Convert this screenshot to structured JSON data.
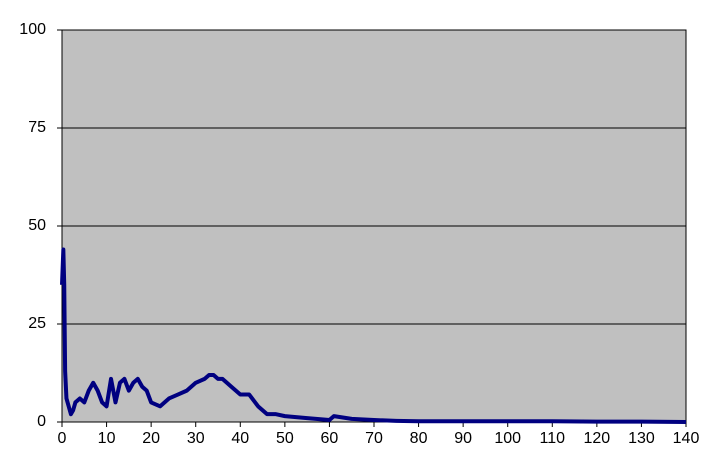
{
  "chart_data": {
    "type": "line",
    "x": [
      0,
      0.3,
      0.5,
      0.7,
      1,
      1.5,
      2,
      2.5,
      3,
      4,
      5,
      6,
      7,
      8,
      9,
      10,
      11,
      12,
      13,
      14,
      15,
      16,
      17,
      18,
      19,
      20,
      22,
      24,
      26,
      28,
      30,
      32,
      33,
      34,
      35,
      36,
      38,
      40,
      42,
      44,
      46,
      48,
      50,
      55,
      60,
      61,
      65,
      70,
      75,
      80,
      90,
      100,
      110,
      120,
      130,
      140
    ],
    "series": [
      {
        "color": "#000080",
        "values": [
          35,
          44,
          35,
          13,
          6,
          4,
          2,
          3,
          5,
          6,
          5,
          8,
          10,
          8,
          5,
          4,
          11,
          5,
          10,
          11,
          8,
          10,
          11,
          9,
          8,
          5,
          4,
          6,
          7,
          8,
          10,
          11,
          12,
          12,
          11,
          11,
          9,
          7,
          7,
          4,
          2,
          2,
          1.5,
          1,
          0.5,
          1.5,
          0.8,
          0.5,
          0.3,
          0.2,
          0.2,
          0.2,
          0.2,
          0.1,
          0.1,
          0
        ]
      }
    ],
    "xlim": [
      0,
      140
    ],
    "ylim": [
      0,
      100
    ],
    "xticks": [
      0,
      10,
      20,
      30,
      40,
      50,
      60,
      70,
      80,
      90,
      100,
      110,
      120,
      130,
      140
    ],
    "yticks": [
      0,
      25,
      50,
      75,
      100
    ],
    "grid": true,
    "background": "#c0c0c0"
  }
}
